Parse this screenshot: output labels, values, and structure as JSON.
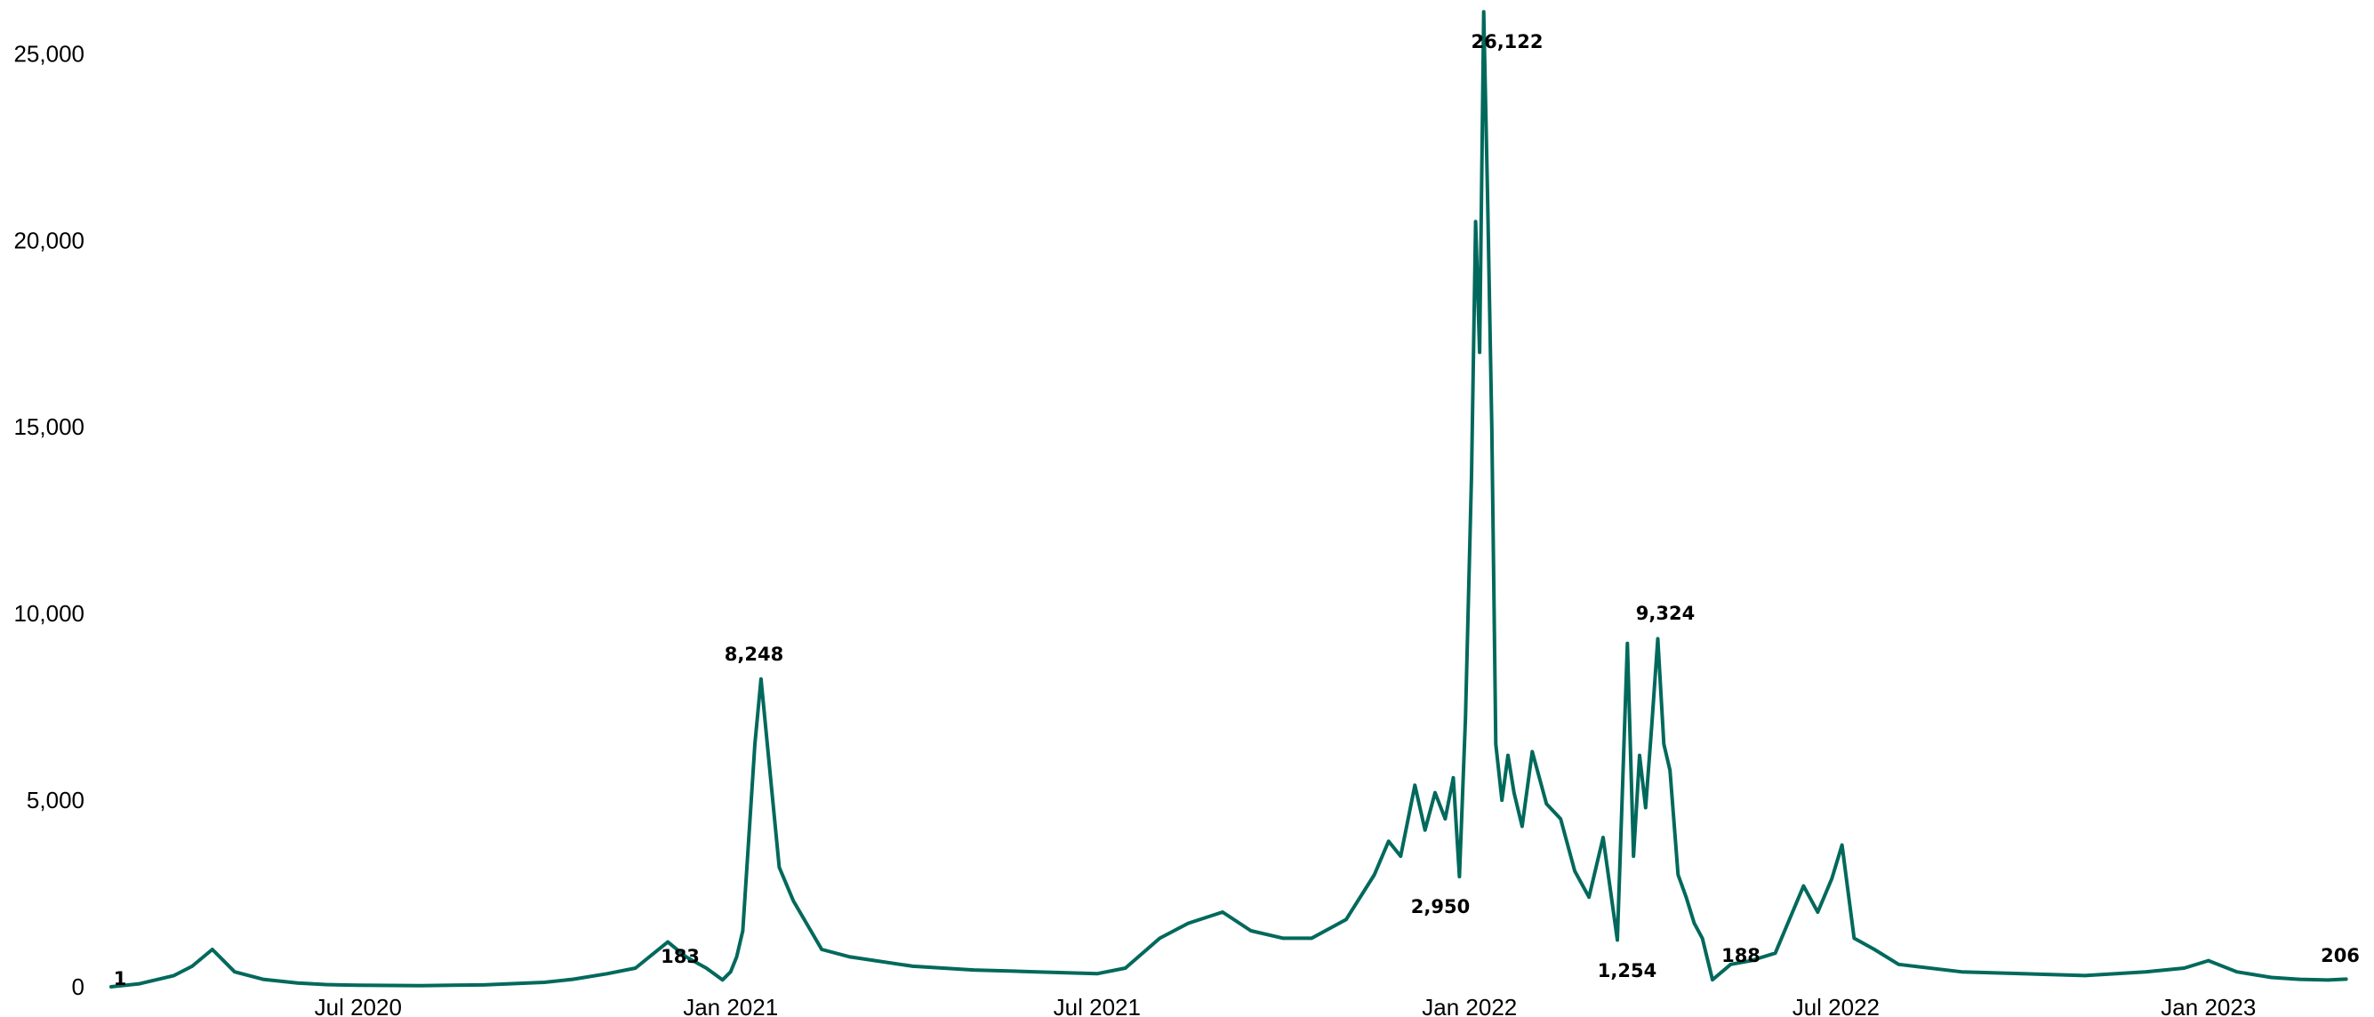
{
  "colors": {
    "line": "#00695c",
    "line_light": "#a8d3c6",
    "background": "#ffffff",
    "text": "#000000"
  },
  "chart_data": {
    "type": "line",
    "title": "",
    "xlabel": "",
    "ylabel": "",
    "ylim": [
      0,
      26200
    ],
    "y_ticks": [
      0,
      5000,
      10000,
      15000,
      20000,
      25000
    ],
    "y_tick_labels": [
      "0",
      "5,000",
      "10,000",
      "15,000",
      "20,000",
      "25,000"
    ],
    "x_range": [
      "2020-03-01",
      "2023-03-15"
    ],
    "x_ticks": [
      "2020-07-01",
      "2021-01-01",
      "2021-07-01",
      "2022-01-01",
      "2022-07-01",
      "2023-01-01"
    ],
    "x_tick_labels": [
      "Jul 2020",
      "Jan 2021",
      "Jul 2021",
      "Jan 2022",
      "Jul 2022",
      "Jan 2023"
    ],
    "grid": false,
    "legend": "none",
    "series": [
      {
        "x": [
          "2020-03-01",
          "2020-03-15",
          "2020-04-01",
          "2020-04-10",
          "2020-04-20",
          "2020-05-01",
          "2020-05-15",
          "2020-06-01",
          "2020-06-15",
          "2020-07-01",
          "2020-08-01",
          "2020-09-01",
          "2020-10-01",
          "2020-10-15",
          "2020-11-01",
          "2020-11-15",
          "2020-12-01",
          "2020-12-10",
          "2020-12-20",
          "2020-12-28",
          "2021-01-01",
          "2021-01-04",
          "2021-01-07",
          "2021-01-10",
          "2021-01-13",
          "2021-01-16",
          "2021-01-20",
          "2021-01-25",
          "2021-02-01",
          "2021-02-15",
          "2021-03-01",
          "2021-04-01",
          "2021-05-01",
          "2021-06-01",
          "2021-07-01",
          "2021-07-15",
          "2021-08-01",
          "2021-08-15",
          "2021-09-01",
          "2021-09-15",
          "2021-10-01",
          "2021-10-15",
          "2021-11-01",
          "2021-11-15",
          "2021-11-22",
          "2021-11-28",
          "2021-12-05",
          "2021-12-10",
          "2021-12-15",
          "2021-12-20",
          "2021-12-24",
          "2021-12-27",
          "2021-12-30",
          "2022-01-02",
          "2022-01-04",
          "2022-01-06",
          "2022-01-08",
          "2022-01-10",
          "2022-01-12",
          "2022-01-14",
          "2022-01-17",
          "2022-01-20",
          "2022-01-23",
          "2022-01-27",
          "2022-02-01",
          "2022-02-08",
          "2022-02-15",
          "2022-02-22",
          "2022-03-01",
          "2022-03-08",
          "2022-03-15",
          "2022-03-20",
          "2022-03-23",
          "2022-03-26",
          "2022-03-29",
          "2022-04-01",
          "2022-04-04",
          "2022-04-07",
          "2022-04-10",
          "2022-04-14",
          "2022-04-18",
          "2022-04-22",
          "2022-04-26",
          "2022-05-01",
          "2022-05-10",
          "2022-05-20",
          "2022-06-01",
          "2022-06-08",
          "2022-06-15",
          "2022-06-22",
          "2022-06-29",
          "2022-07-04",
          "2022-07-10",
          "2022-07-20",
          "2022-08-01",
          "2022-09-01",
          "2022-10-01",
          "2022-11-01",
          "2022-12-01",
          "2022-12-20",
          "2023-01-01",
          "2023-01-15",
          "2023-02-01",
          "2023-02-15",
          "2023-03-01",
          "2023-03-10"
        ],
        "y": [
          1,
          80,
          300,
          550,
          1000,
          400,
          200,
          100,
          60,
          40,
          30,
          50,
          120,
          200,
          350,
          500,
          1200,
          800,
          500,
          183,
          400,
          800,
          1500,
          4000,
          6500,
          8248,
          6000,
          3200,
          2300,
          1000,
          800,
          550,
          450,
          400,
          350,
          500,
          1300,
          1700,
          2000,
          1500,
          1300,
          1300,
          1800,
          3000,
          3900,
          3500,
          5400,
          4200,
          5200,
          4500,
          5600,
          2950,
          7200,
          13700,
          20500,
          17000,
          26122,
          21000,
          15000,
          6500,
          5000,
          6200,
          5200,
          4300,
          6300,
          4900,
          4500,
          3100,
          2400,
          4000,
          1254,
          9200,
          3500,
          6200,
          4800,
          7000,
          9324,
          6500,
          5800,
          3000,
          2400,
          1700,
          1300,
          188,
          600,
          700,
          900,
          1800,
          2700,
          2000,
          2900,
          3800,
          1300,
          1000,
          600,
          400,
          350,
          300,
          400,
          500,
          700,
          400,
          250,
          200,
          180,
          206
        ]
      }
    ],
    "annotations": [
      {
        "x": "2020-03-01",
        "y": 1,
        "label": "1"
      },
      {
        "x": "2020-12-28",
        "y": 183,
        "label": "183"
      },
      {
        "x": "2021-01-16",
        "y": 8248,
        "label": "8,248"
      },
      {
        "x": "2021-12-27",
        "y": 2950,
        "label": "2,950"
      },
      {
        "x": "2022-01-08",
        "y": 26122,
        "label": "26,122"
      },
      {
        "x": "2022-03-15",
        "y": 1254,
        "label": "1,254"
      },
      {
        "x": "2022-04-04",
        "y": 9324,
        "label": "9,324"
      },
      {
        "x": "2022-05-01",
        "y": 188,
        "label": "188"
      },
      {
        "x": "2023-03-10",
        "y": 206,
        "label": "206"
      }
    ]
  }
}
